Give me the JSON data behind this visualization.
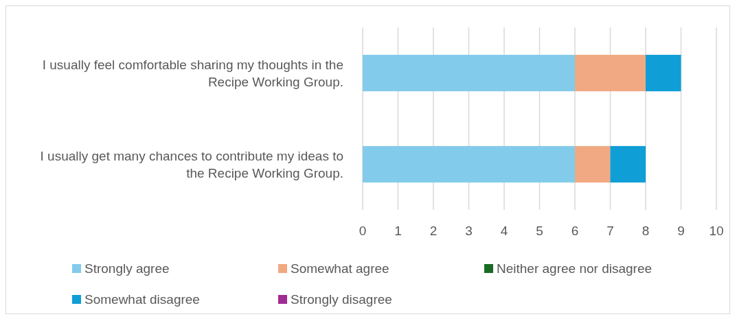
{
  "chart_data": {
    "type": "bar",
    "orientation": "horizontal",
    "stacked": true,
    "categories": [
      "I usually feel comfortable sharing my thoughts in the Recipe Working Group.",
      "I usually get many chances to contribute my ideas to the Recipe Working Group."
    ],
    "series": [
      {
        "name": "Strongly agree",
        "color": "#83cbeb",
        "values": [
          6,
          6
        ]
      },
      {
        "name": "Somewhat agree",
        "color": "#f1a983",
        "values": [
          2,
          1
        ]
      },
      {
        "name": "Neither agree nor disagree",
        "color": "#196b24",
        "values": [
          0,
          0
        ]
      },
      {
        "name": "Somewhat disagree",
        "color": "#0f9ed5",
        "values": [
          1,
          1
        ]
      },
      {
        "name": "Strongly disagree",
        "color": "#a02b93",
        "values": [
          0,
          0
        ]
      }
    ],
    "xlim": [
      0,
      10
    ],
    "xticks": [
      0,
      1,
      2,
      3,
      4,
      5,
      6,
      7,
      8,
      9,
      10
    ],
    "grid": "x",
    "legend": "bottom"
  }
}
